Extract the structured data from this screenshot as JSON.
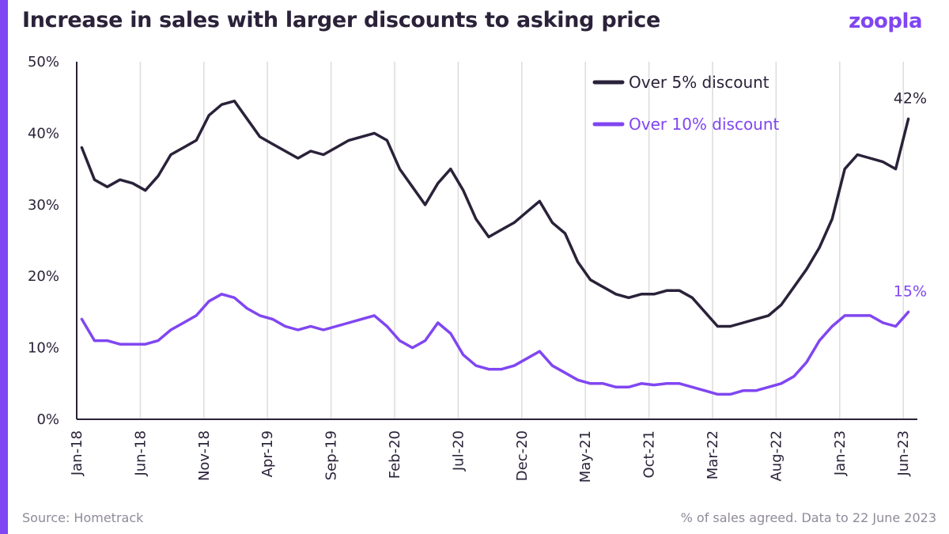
{
  "title": "Increase in sales with larger discounts to asking price",
  "brand": "zoopla",
  "footer": {
    "source": "Source: Hometrack",
    "note": "% of sales agreed. Data to 22 June 2023"
  },
  "colors": {
    "accent": "#8046f1",
    "series_dark": "#2a2239",
    "series_purple": "#8046f1",
    "grid": "#dcdcdc"
  },
  "chart_data": {
    "type": "line",
    "title": "Increase in sales with larger discounts to asking price",
    "xlabel": "",
    "ylabel": "",
    "ylim": [
      0,
      50
    ],
    "xlim": [
      "2018-01",
      "2023-07"
    ],
    "grid": "vertical",
    "legend_position": "top-right",
    "y_ticks": [
      "0%",
      "10%",
      "20%",
      "30%",
      "40%",
      "50%"
    ],
    "x_ticks": [
      "Jan-18",
      "Jun-18",
      "Nov-18",
      "Apr-19",
      "Sep-19",
      "Feb-20",
      "Jul-20",
      "Dec-20",
      "May-21",
      "Oct-21",
      "Mar-22",
      "Aug-22",
      "Jan-23",
      "Jun-23"
    ],
    "x": [
      "2018-01",
      "2018-02",
      "2018-03",
      "2018-04",
      "2018-05",
      "2018-06",
      "2018-07",
      "2018-08",
      "2018-09",
      "2018-10",
      "2018-11",
      "2018-12",
      "2019-01",
      "2019-02",
      "2019-03",
      "2019-04",
      "2019-05",
      "2019-06",
      "2019-07",
      "2019-08",
      "2019-09",
      "2019-10",
      "2019-11",
      "2019-12",
      "2020-01",
      "2020-02",
      "2020-03",
      "2020-04",
      "2020-05",
      "2020-06",
      "2020-07",
      "2020-08",
      "2020-09",
      "2020-10",
      "2020-11",
      "2020-12",
      "2021-01",
      "2021-02",
      "2021-03",
      "2021-04",
      "2021-05",
      "2021-06",
      "2021-07",
      "2021-08",
      "2021-09",
      "2021-10",
      "2021-11",
      "2021-12",
      "2022-01",
      "2022-02",
      "2022-03",
      "2022-04",
      "2022-05",
      "2022-06",
      "2022-07",
      "2022-08",
      "2022-09",
      "2022-10",
      "2022-11",
      "2022-12",
      "2023-01",
      "2023-02",
      "2023-03",
      "2023-04",
      "2023-05",
      "2023-06"
    ],
    "series": [
      {
        "name": "Over 5% discount",
        "end_label": "42%",
        "values": [
          38,
          33.5,
          32.5,
          33.5,
          33,
          32,
          34,
          37,
          38,
          39,
          42.5,
          44,
          44.5,
          42,
          39.5,
          38.5,
          37.5,
          36.5,
          37.5,
          37,
          38,
          39,
          39.5,
          40,
          39,
          35,
          32.5,
          30,
          33,
          35,
          32,
          28,
          25.5,
          26.5,
          27.5,
          29,
          30.5,
          27.5,
          26,
          22,
          19.5,
          18.5,
          17.5,
          17,
          17.5,
          17.5,
          18,
          18,
          17,
          15,
          13,
          13,
          13.5,
          14,
          14.5,
          16,
          18.5,
          21,
          24,
          28,
          35,
          37,
          36.5,
          36,
          35,
          42
        ]
      },
      {
        "name": "Over 10% discount",
        "end_label": "15%",
        "values": [
          14,
          11,
          11,
          10.5,
          10.5,
          10.5,
          11,
          12.5,
          13.5,
          14.5,
          16.5,
          17.5,
          17,
          15.5,
          14.5,
          14,
          13,
          12.5,
          13,
          12.5,
          13,
          13.5,
          14,
          14.5,
          13,
          11,
          10,
          11,
          13.5,
          12,
          9,
          7.5,
          7,
          7,
          7.5,
          8.5,
          9.5,
          7.5,
          6.5,
          5.5,
          5,
          5,
          4.5,
          4.5,
          5,
          4.8,
          5,
          5,
          4.5,
          4,
          3.5,
          3.5,
          4,
          4,
          4.5,
          5,
          6,
          8,
          11,
          13,
          14.5,
          14.5,
          14.5,
          13.5,
          13,
          15
        ]
      }
    ]
  }
}
